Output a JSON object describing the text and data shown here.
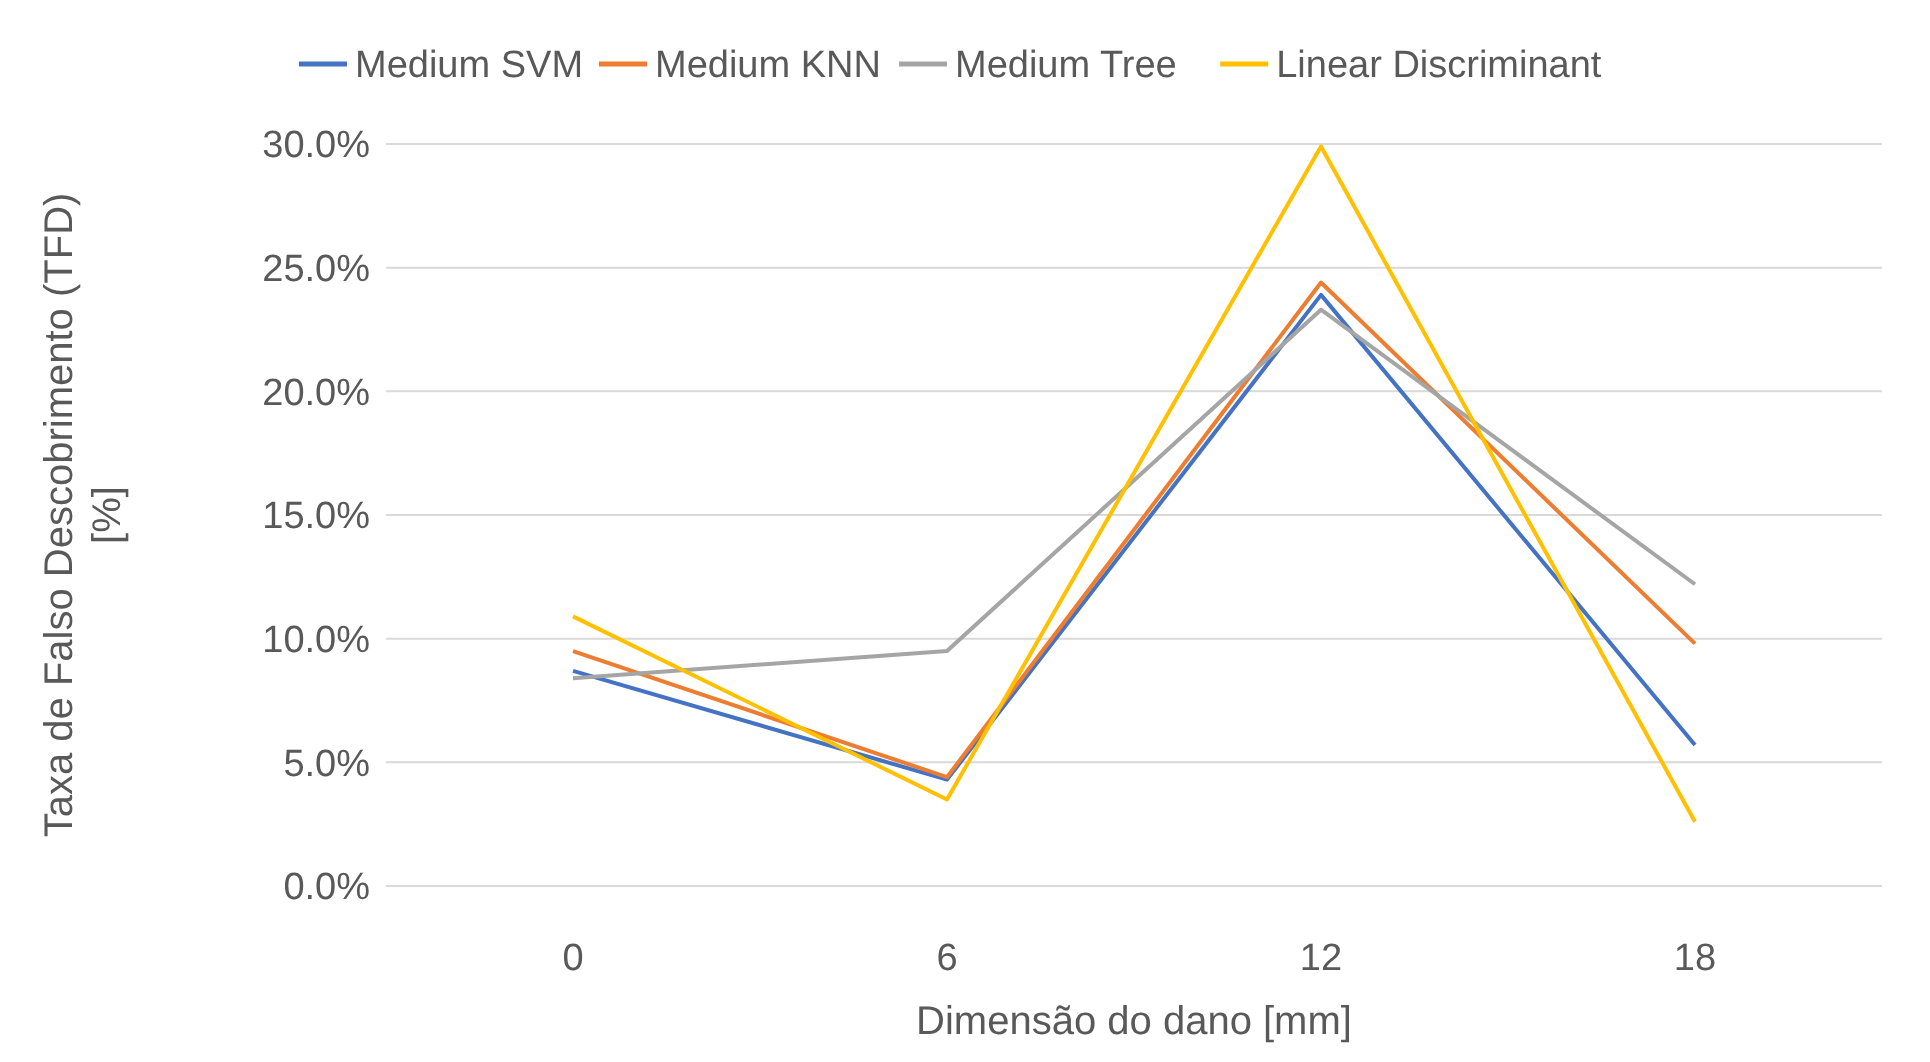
{
  "chart_data": {
    "type": "line",
    "xlabel": "Dimensão do dano [mm]",
    "ylabel": "Taxa de Falso Descobrimento (TFD) [%]",
    "categories": [
      "0",
      "6",
      "12",
      "18"
    ],
    "series": [
      {
        "name": "Medium SVM",
        "color": "#4472c4",
        "values": [
          8.7,
          4.3,
          23.9,
          5.7
        ]
      },
      {
        "name": "Medium KNN",
        "color": "#ed7d31",
        "values": [
          9.5,
          4.4,
          24.4,
          9.8
        ]
      },
      {
        "name": "Medium Tree",
        "color": "#a5a5a5",
        "values": [
          8.4,
          9.5,
          23.3,
          12.2
        ]
      },
      {
        "name": "Linear Discriminant",
        "color": "#ffc000",
        "values": [
          10.9,
          3.5,
          29.9,
          2.6
        ]
      }
    ],
    "ylim": [
      0,
      30
    ],
    "yticks": [
      {
        "value": 0,
        "label": "0.0%"
      },
      {
        "value": 5,
        "label": "5.0%"
      },
      {
        "value": 10,
        "label": "10.0%"
      },
      {
        "value": 15,
        "label": "15.0%"
      },
      {
        "value": 20,
        "label": "20.0%"
      },
      {
        "value": 25,
        "label": "25.0%"
      },
      {
        "value": 30,
        "label": "30.0%"
      }
    ],
    "grid": "y",
    "legend": "top",
    "marker": "none",
    "line_style": "solid"
  }
}
